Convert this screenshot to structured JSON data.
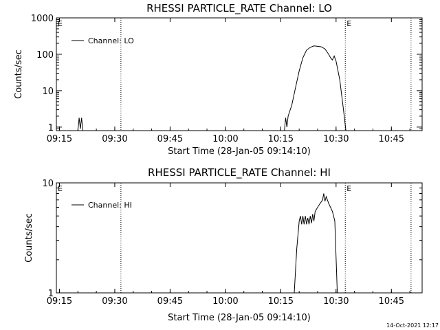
{
  "footer_stamp": "14-Oct-2021 12:17",
  "chart_data": [
    {
      "type": "line",
      "title": "RHESSI PARTICLE_RATE Channel: LO",
      "xlabel": "Start Time (28-Jan-05 09:14:10)",
      "ylabel": "Counts/sec",
      "yscale": "log",
      "xlim": [
        "09:14:10",
        "10:53:20"
      ],
      "ylim": [
        0.8,
        1000
      ],
      "xticks": [
        "09:15",
        "09:30",
        "09:45",
        "10:00",
        "10:15",
        "10:30",
        "10:45"
      ],
      "yticks": [
        "1",
        "10",
        "100",
        "1000"
      ],
      "legend": "top-left",
      "series": [
        {
          "name": "Channel: LO",
          "points": [
            [
              "09:14:10",
              0.8
            ],
            [
              "09:20:00",
              0.8
            ],
            [
              "09:20:20",
              1.8
            ],
            [
              "09:20:40",
              0.9
            ],
            [
              "09:21:00",
              1.8
            ],
            [
              "09:21:20",
              0.8
            ],
            [
              "10:16:00",
              0.8
            ],
            [
              "10:16:20",
              1.8
            ],
            [
              "10:16:40",
              1.0
            ],
            [
              "10:17:00",
              2.0
            ],
            [
              "10:18:00",
              4.0
            ],
            [
              "10:19:00",
              12.0
            ],
            [
              "10:20:00",
              35.0
            ],
            [
              "10:21:00",
              80.0
            ],
            [
              "10:22:00",
              130.0
            ],
            [
              "10:23:00",
              155.0
            ],
            [
              "10:24:00",
              170.0
            ],
            [
              "10:25:00",
              165.0
            ],
            [
              "10:26:00",
              160.0
            ],
            [
              "10:27:00",
              140.0
            ],
            [
              "10:28:00",
              100.0
            ],
            [
              "10:28:30",
              80.0
            ],
            [
              "10:29:00",
              70.0
            ],
            [
              "10:29:30",
              90.0
            ],
            [
              "10:30:00",
              65.0
            ],
            [
              "10:31:00",
              20.0
            ],
            [
              "10:32:00",
              3.0
            ],
            [
              "10:32:40",
              0.8
            ]
          ]
        }
      ],
      "markers": [
        {
          "time": "09:14:10",
          "label": "E"
        },
        {
          "time": "09:31:40",
          "label": ""
        },
        {
          "time": "10:32:30",
          "label": "E"
        },
        {
          "time": "10:50:20",
          "label": ""
        }
      ]
    },
    {
      "type": "line",
      "title": "RHESSI PARTICLE_RATE Channel: HI",
      "xlabel": "Start Time (28-Jan-05 09:14:10)",
      "ylabel": "Counts/sec",
      "yscale": "log",
      "xlim": [
        "09:14:10",
        "10:53:20"
      ],
      "ylim": [
        1,
        10
      ],
      "xticks": [
        "09:15",
        "09:30",
        "09:45",
        "10:00",
        "10:15",
        "10:30",
        "10:45"
      ],
      "yticks": [
        "1",
        "10"
      ],
      "legend": "top-left",
      "series": [
        {
          "name": "Channel: HI",
          "points": [
            [
              "10:18:40",
              1.0
            ],
            [
              "10:19:20",
              2.5
            ],
            [
              "10:20:00",
              4.5
            ],
            [
              "10:20:20",
              5.0
            ],
            [
              "10:20:40",
              4.2
            ],
            [
              "10:21:00",
              5.0
            ],
            [
              "10:21:20",
              4.2
            ],
            [
              "10:21:40",
              5.0
            ],
            [
              "10:22:00",
              4.2
            ],
            [
              "10:22:20",
              4.8
            ],
            [
              "10:22:40",
              4.2
            ],
            [
              "10:23:00",
              5.0
            ],
            [
              "10:23:20",
              4.3
            ],
            [
              "10:23:40",
              5.2
            ],
            [
              "10:24:00",
              4.5
            ],
            [
              "10:24:20",
              5.5
            ],
            [
              "10:25:00",
              6.0
            ],
            [
              "10:25:40",
              6.5
            ],
            [
              "10:26:20",
              7.0
            ],
            [
              "10:26:40",
              8.0
            ],
            [
              "10:27:00",
              6.8
            ],
            [
              "10:27:20",
              7.5
            ],
            [
              "10:28:00",
              6.5
            ],
            [
              "10:29:00",
              5.5
            ],
            [
              "10:29:40",
              4.5
            ],
            [
              "10:30:20",
              1.0
            ]
          ]
        }
      ],
      "markers": [
        {
          "time": "09:14:10",
          "label": "E"
        },
        {
          "time": "09:31:40",
          "label": ""
        },
        {
          "time": "10:32:30",
          "label": "E"
        },
        {
          "time": "10:50:20",
          "label": ""
        }
      ]
    }
  ]
}
